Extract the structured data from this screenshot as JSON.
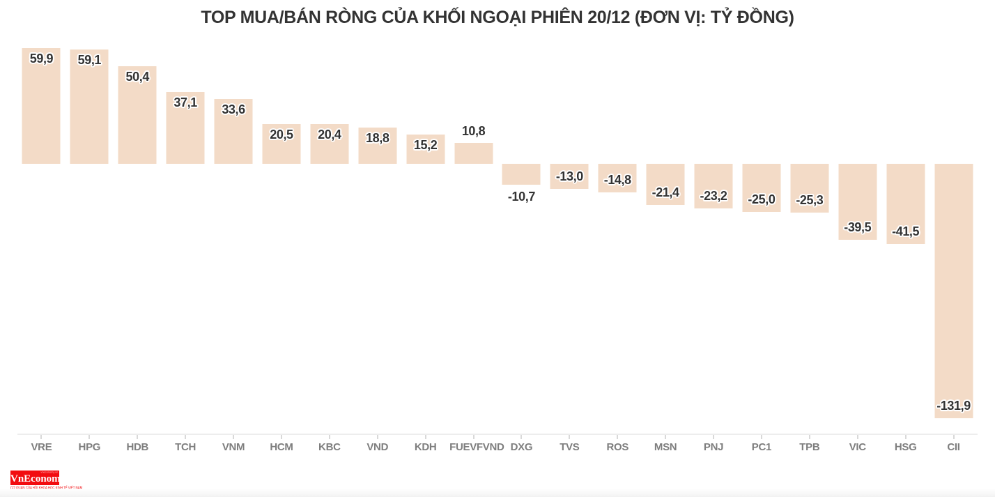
{
  "chart_data": {
    "type": "bar",
    "title": "TOP MUA/BÁN RÒNG CỦA KHỐI NGOẠI PHIÊN 20/12 (ĐƠN VỊ: TỶ ĐỒNG)",
    "unit": "tỷ đồng",
    "categories": [
      "VRE",
      "HPG",
      "HDB",
      "TCH",
      "VNM",
      "HCM",
      "KBC",
      "VND",
      "KDH",
      "FUEVFVND",
      "DXG",
      "TVS",
      "ROS",
      "MSN",
      "PNJ",
      "PC1",
      "TPB",
      "VIC",
      "HSG",
      "CII"
    ],
    "values": [
      59.9,
      59.1,
      50.4,
      37.1,
      33.6,
      20.5,
      20.4,
      18.8,
      15.2,
      10.8,
      -10.7,
      -13.0,
      -14.8,
      -21.4,
      -23.2,
      -25.0,
      -25.3,
      -39.5,
      -41.5,
      -131.9
    ],
    "display_labels": [
      "59,9",
      "59,1",
      "50,4",
      "37,1",
      "33,6",
      "20,5",
      "20,4",
      "18,8",
      "15,2",
      "10,8",
      "-10,7",
      "-13,0",
      "-14,8",
      "-21,4",
      "-23,2",
      "-25,0",
      "-25,3",
      "-39,5",
      "-41,5",
      "-131,9"
    ],
    "label_positions": [
      "inside-top",
      "inside-top",
      "inside-top",
      "inside-top",
      "inside-top",
      "inside-top",
      "inside-top",
      "inside-top",
      "inside-top",
      "above",
      "below",
      "inside-bottom",
      "inside-bottom",
      "inside-bottom",
      "inside-bottom",
      "inside-bottom",
      "inside-bottom",
      "inside-bottom",
      "inside-bottom",
      "inside-bottom"
    ],
    "ylim": [
      -140,
      70
    ],
    "grid": false,
    "legend": false,
    "bar_color": "#f3dbc7",
    "value_label_color": "#333333",
    "axis_label_color": "#7e7e7e",
    "axis_line_color": "#ededed"
  },
  "logo": {
    "url": "vneconomy.vn",
    "name": "VnEconomy",
    "tagline": "CƠ QUAN CỦA HỘI KHOA HỌC KINH TẾ VIỆT NAM",
    "brand_color": "#f20c10"
  }
}
